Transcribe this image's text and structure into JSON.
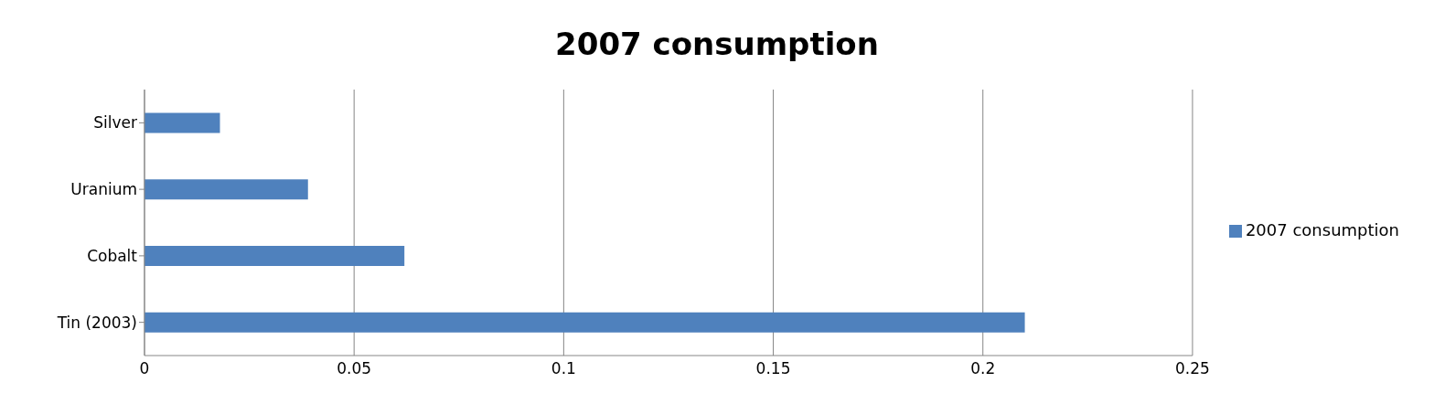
{
  "chart_data": {
    "type": "bar",
    "orientation": "horizontal",
    "title": "2007 consumption",
    "categories": [
      "Silver",
      "Uranium",
      "Cobalt",
      "Tin (2003)"
    ],
    "series": [
      {
        "name": "2007 consumption",
        "color": "#4f81bd",
        "values": [
          0.018,
          0.039,
          0.062,
          0.21
        ]
      }
    ],
    "xlim": [
      0,
      0.25
    ],
    "xticks": [
      0,
      0.05,
      0.1,
      0.15,
      0.2,
      0.25
    ],
    "grid": "x",
    "legend": "right"
  }
}
